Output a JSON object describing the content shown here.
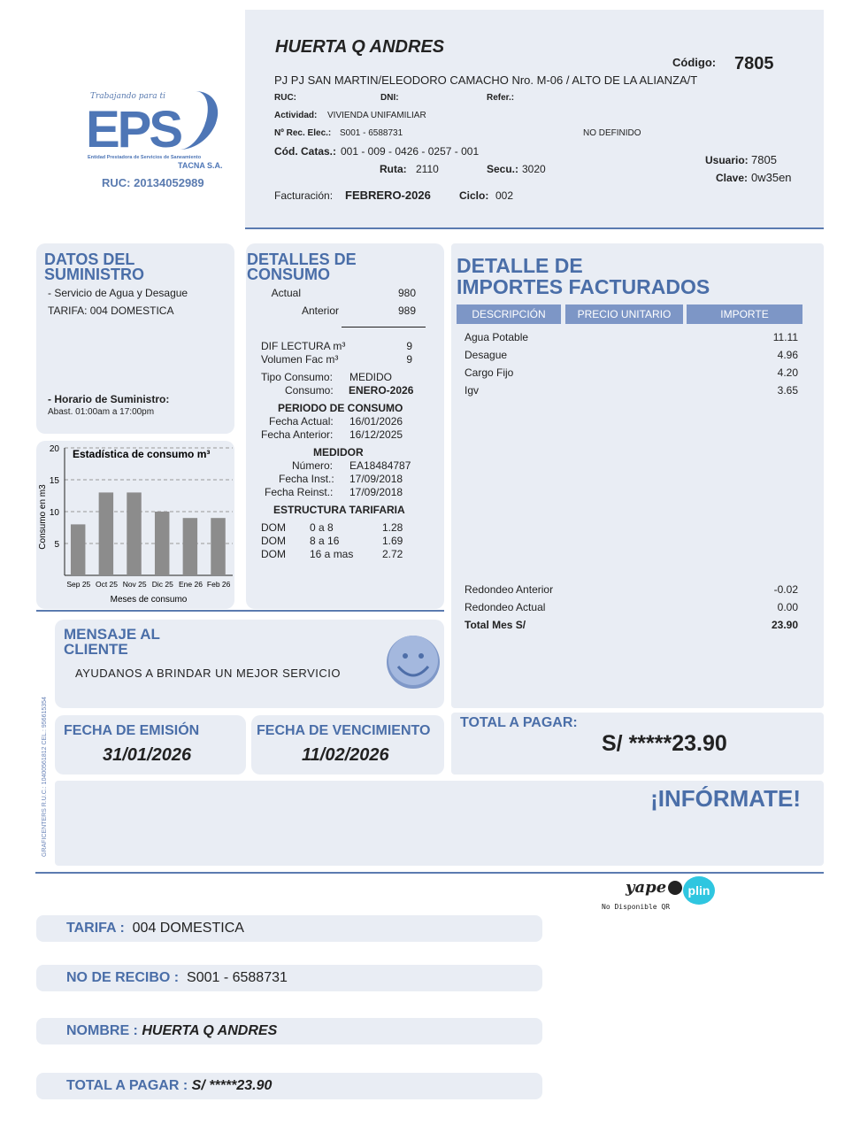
{
  "logo": {
    "tagline": "Trabajando para ti",
    "brand": "EPS",
    "entity": "Entidad Prestadora de Servicios de Saneamiento",
    "company": "TACNA S.A.",
    "ruc": "RUC: 20134052989"
  },
  "header": {
    "name": "HUERTA Q ANDRES",
    "codigo_label": "Código:",
    "codigo": "7805",
    "address": "PJ PJ SAN MARTIN/ELEODORO CAMACHO Nro. M-06 / ALTO DE LA ALIANZA/T",
    "ruc_label": "RUC:",
    "dni_label": "DNI:",
    "refer_label": "Refer.:",
    "actividad_label": "Actividad:",
    "actividad": "VIVIENDA UNIFAMILIAR",
    "rec_label": "Nº Rec. Elec.:",
    "rec": "S001 - 6588731",
    "no_definido": "NO DEFINIDO",
    "catas_label": "Cód. Catas.:",
    "catas": "001 - 009 - 0426 - 0257 - 001",
    "ruta_label": "Ruta:",
    "ruta": "2110",
    "secu_label": "Secu.:",
    "secu": "3020",
    "usuario_label": "Usuario:",
    "usuario": "7805",
    "clave_label": "Clave:",
    "clave": "0w35en",
    "fact_label": "Facturación:",
    "fact": "FEBRERO-2026",
    "ciclo_label": "Ciclo:",
    "ciclo": "002"
  },
  "suministro": {
    "title1": "DATOS DEL",
    "title2": "SUMINISTRO",
    "servicio": "- Servicio de Agua y Desague",
    "tarifa": "TARIFA: 004 DOMESTICA",
    "horario_label": "- Horario de Suministro:",
    "horario": "Abast. 01:00am a 17:00pm"
  },
  "chart_data": {
    "type": "bar",
    "title": "Estadística de consumo m³",
    "xlabel": "Meses de consumo",
    "ylabel": "Consumo en m3",
    "categories": [
      "Sep 25",
      "Oct 25",
      "Nov 25",
      "Dic 25",
      "Ene 26",
      "Feb 26"
    ],
    "values": [
      8,
      13,
      13,
      10,
      9,
      9
    ],
    "ylim": [
      0,
      20
    ],
    "yticks": [
      5,
      10,
      15,
      20
    ],
    "grid": true,
    "bar_color": "#8c8c8c"
  },
  "consumo": {
    "title1": "DETALLES DE",
    "title2": "CONSUMO",
    "actual_label": "Actual",
    "actual": "980",
    "anterior_label": "Anterior",
    "anterior": "989",
    "dif_label": "DIF LECTURA m³",
    "dif": "9",
    "vol_label": "Volumen Fac m³",
    "vol": "9",
    "tipo_label": "Tipo Consumo:",
    "tipo": "MEDIDO",
    "cons_label": "Consumo:",
    "cons": "ENERO-2026",
    "periodo_title": "PERIODO DE CONSUMO",
    "fa_label": "Fecha Actual:",
    "fa": "16/01/2026",
    "fan_label": "Fecha Anterior:",
    "fan": "16/12/2025",
    "medidor_title": "MEDIDOR",
    "num_label": "Número:",
    "num": "EA18484787",
    "fi_label": "Fecha Inst.:",
    "fi": "17/09/2018",
    "fr_label": "Fecha Reinst.:",
    "fr": "17/09/2018",
    "estructura_title": "ESTRUCTURA TARIFARIA",
    "tarifas": [
      {
        "c": "DOM",
        "r": "0 a 8",
        "v": "1.28"
      },
      {
        "c": "DOM",
        "r": "8 a 16",
        "v": "1.69"
      },
      {
        "c": "DOM",
        "r": "16 a mas",
        "v": "2.72"
      }
    ]
  },
  "importes": {
    "title1": "DETALLE DE",
    "title2": "IMPORTES FACTURADOS",
    "headers": [
      "DESCRIPCIÓN",
      "PRECIO UNITARIO",
      "IMPORTE"
    ],
    "items": [
      {
        "d": "Agua Potable",
        "v": "11.11"
      },
      {
        "d": "Desague",
        "v": "4.96"
      },
      {
        "d": "Cargo Fijo",
        "v": "4.20"
      },
      {
        "d": "Igv",
        "v": "3.65"
      }
    ],
    "redondeo_ant_label": "Redondeo Anterior",
    "redondeo_ant": "-0.02",
    "redondeo_act_label": "Redondeo Actual",
    "redondeo_act": "0.00",
    "total_label": "Total Mes S/",
    "total": "23.90"
  },
  "mensaje": {
    "title1": "MENSAJE AL",
    "title2": "CLIENTE",
    "text": "AYUDANOS A BRINDAR UN MEJOR SERVICIO"
  },
  "emision": {
    "label": "FECHA DE EMISIÓN",
    "date": "31/01/2026"
  },
  "vencimiento": {
    "label": "FECHA DE VENCIMIENTO",
    "date": "11/02/2026"
  },
  "total": {
    "label": "TOTAL A PAGAR:",
    "amount": "S/ *****23.90"
  },
  "informate": "¡INFÓRMATE!",
  "printer": "GRAFICENTERS R.U.C.: 10400561812 CEL.: 956615354",
  "payments": {
    "yape": "yape",
    "plin": "plin",
    "qr_note": "No Disponible QR"
  },
  "footer": [
    {
      "k": "TARIFA :",
      "v": "004 DOMESTICA"
    },
    {
      "k": "NO DE RECIBO :",
      "v": "S001 - 6588731"
    },
    {
      "k": "NOMBRE :",
      "v": "HUERTA Q ANDRES"
    },
    {
      "k": "TOTAL A PAGAR :",
      "v": "S/ *****23.90"
    }
  ]
}
